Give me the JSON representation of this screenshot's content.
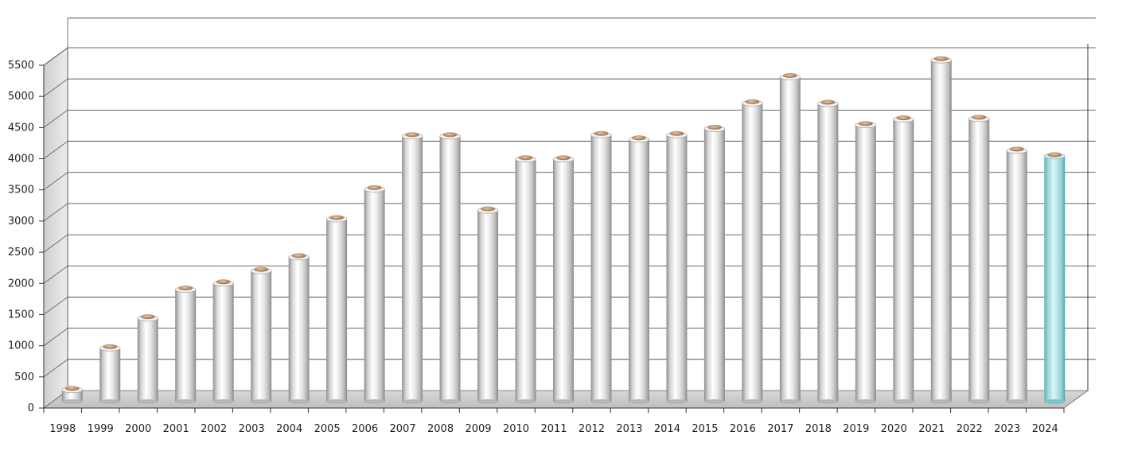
{
  "chart_data": {
    "type": "bar",
    "title": "",
    "xlabel": "",
    "ylabel": "",
    "ylim": [
      0,
      5500
    ],
    "yticks": [
      0,
      500,
      1000,
      1500,
      2000,
      2500,
      3000,
      3500,
      4000,
      4500,
      5000,
      5500
    ],
    "grid": true,
    "categories": [
      "1998",
      "1999",
      "2000",
      "2001",
      "2002",
      "2003",
      "2004",
      "2005",
      "2006",
      "2007",
      "2008",
      "2009",
      "2010",
      "2011",
      "2012",
      "2013",
      "2014",
      "2015",
      "2016",
      "2017",
      "2018",
      "2019",
      "2020",
      "2021",
      "2022",
      "2023",
      "2024"
    ],
    "values": [
      150,
      820,
      1300,
      1760,
      1860,
      2060,
      2280,
      2890,
      3370,
      4220,
      4220,
      3030,
      3850,
      3850,
      4240,
      4170,
      4240,
      4340,
      4750,
      5170,
      4740,
      4400,
      4490,
      5440,
      4500,
      3990,
      3900
    ],
    "colors": {
      "bar": "#d9d9d9",
      "highlight": "#a6dfe4",
      "cap": "#b08a6a"
    },
    "highlight_index": 26
  }
}
